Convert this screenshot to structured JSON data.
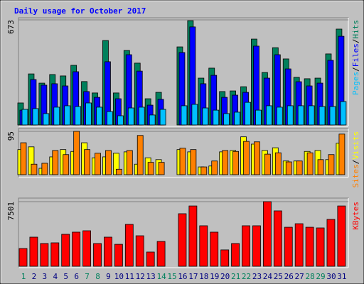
{
  "chart_data": {
    "type": "bar",
    "title": "Daily usage for October 2017",
    "separator": "/",
    "categories": [
      "1",
      "2",
      "3",
      "4",
      "5",
      "6",
      "7",
      "8",
      "9",
      "10",
      "11",
      "12",
      "13",
      "14",
      "15",
      "16",
      "17",
      "18",
      "19",
      "20",
      "21",
      "22",
      "23",
      "24",
      "25",
      "26",
      "27",
      "28",
      "29",
      "30",
      "31"
    ],
    "category_colors": [
      "#00805c",
      "#000080",
      "#000080",
      "#000080",
      "#000080",
      "#000080",
      "#00805c",
      "#00805c",
      "#000080",
      "#000080",
      "#000080",
      "#000080",
      "#000080",
      "#00805c",
      "#00805c",
      "#000080",
      "#000080",
      "#000080",
      "#000080",
      "#000080",
      "#00805c",
      "#00805c",
      "#000080",
      "#000080",
      "#000080",
      "#000080",
      "#000080",
      "#00805c",
      "#00805c",
      "#000080",
      "#000080"
    ],
    "panels": [
      {
        "ylim": [
          0,
          673
        ],
        "yticks": [
          673
        ],
        "series": [
          {
            "name": "Hits",
            "color": "#00805c",
            "values": [
              141,
              327,
              268,
              323,
              314,
              382,
              278,
              205,
              541,
              205,
              477,
              396,
              168,
              209,
              null,
              500,
              668,
              300,
              364,
              214,
              218,
              245,
              550,
              336,
              495,
              423,
              305,
              296,
              300,
              455,
              614
            ]
          },
          {
            "name": "Files",
            "color": "#0000ff",
            "values": [
              95,
              291,
              255,
              264,
              250,
              341,
              214,
              177,
              405,
              168,
              450,
              345,
              127,
              164,
              null,
              464,
              628,
              264,
              318,
              177,
              191,
              209,
              505,
              300,
              450,
              359,
              277,
              250,
              268,
              414,
              568
            ]
          },
          {
            "name": "Pages",
            "color": "#00c0ff",
            "values": [
              100,
              105,
              73,
              114,
              123,
              118,
              141,
              114,
              86,
              59,
              109,
              114,
              64,
              100,
              null,
              123,
              132,
              109,
              95,
              73,
              82,
              145,
              95,
              123,
              114,
              123,
              123,
              123,
              118,
              118,
              150
            ]
          }
        ]
      },
      {
        "ylim": [
          0,
          95
        ],
        "yticks": [
          95
        ],
        "series": [
          {
            "name": "Visits",
            "color": "#ffff00",
            "values": [
              55,
              61,
              14,
              39,
              55,
              51,
              70,
              37,
              39,
              47,
              50,
              23,
              37,
              33,
              null,
              55,
              50,
              17,
              19,
              50,
              53,
              83,
              67,
              53,
              59,
              30,
              30,
              51,
              53,
              33,
              69
            ]
          },
          {
            "name": "Sites",
            "color": "#ff8000",
            "values": [
              70,
              23,
              25,
              53,
              44,
              95,
              55,
              47,
              53,
              12,
              53,
              86,
              27,
              27,
              null,
              58,
              55,
              17,
              30,
              53,
              51,
              73,
              72,
              45,
              48,
              28,
              30,
              48,
              33,
              44,
              89
            ]
          }
        ]
      },
      {
        "ylim": [
          0,
          7501
        ],
        "yticks": [
          7501
        ],
        "series": [
          {
            "name": "KBytes",
            "color": "#ff0000",
            "values": [
              2060,
              3380,
              2640,
              2720,
              3710,
              3960,
              4120,
              2640,
              3380,
              2550,
              4860,
              3540,
              1650,
              2880,
              null,
              6100,
              7000,
              4700,
              3960,
              1900,
              2640,
              4700,
              4700,
              7501,
              6430,
              4530,
              4940,
              4530,
              4450,
              5440,
              7000
            ]
          }
        ]
      }
    ]
  }
}
